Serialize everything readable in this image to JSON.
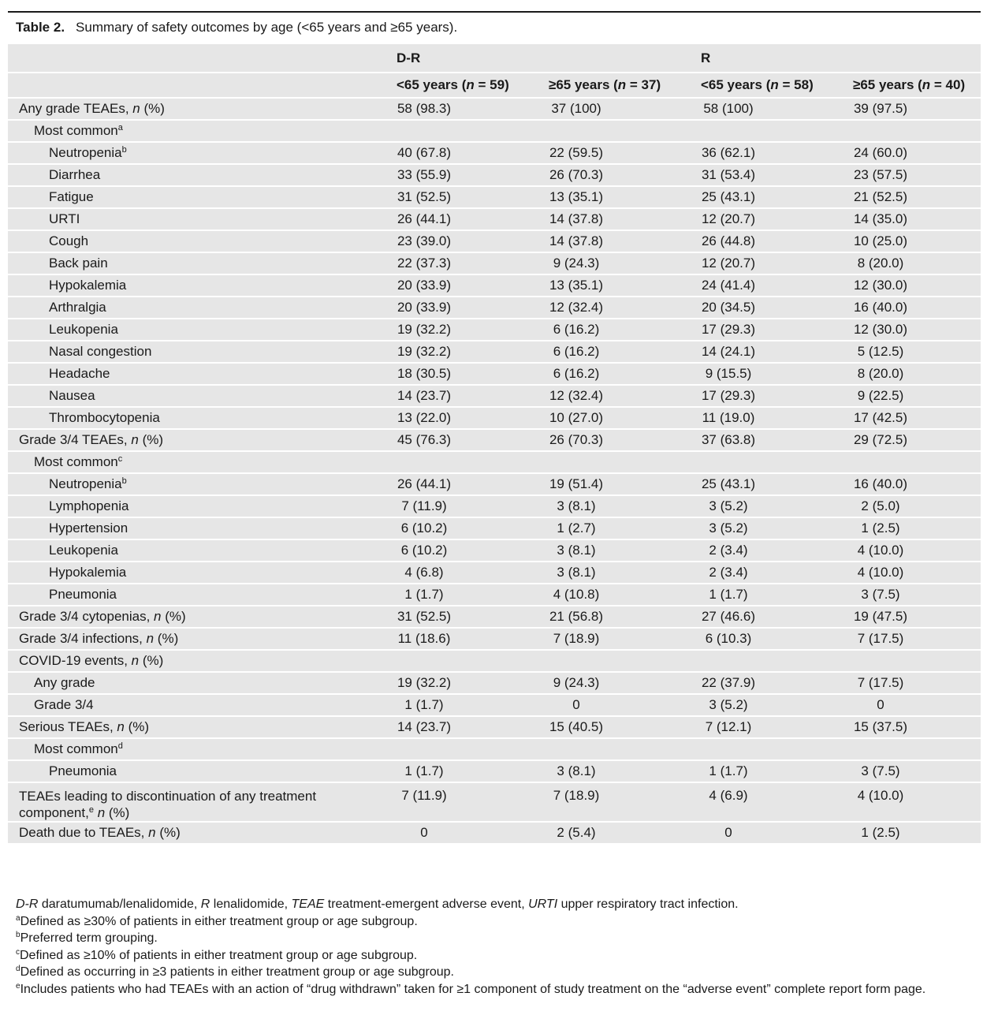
{
  "caption": {
    "label": "Table 2.",
    "text": "Summary of safety outcomes by age (<65 years and ≥65 years)."
  },
  "header": {
    "groups": [
      "D-R",
      "R"
    ],
    "subgroups": [
      {
        "prefix": "<65 years (",
        "n": "n",
        "eq": " = 59)"
      },
      {
        "prefix": "≥65 years (",
        "n": "n",
        "eq": " = 37)"
      },
      {
        "prefix": "<65 years (",
        "n": "n",
        "eq": " = 58)"
      },
      {
        "prefix": "≥65 years (",
        "n": "n",
        "eq": " = 40)"
      }
    ]
  },
  "rows": [
    {
      "label": "Any grade TEAEs, ",
      "italic": "n",
      "suffix": " (%)",
      "level": 0,
      "values": [
        "58 (98.3)",
        "37 (100)",
        "58 (100)",
        "39 (97.5)"
      ]
    },
    {
      "label": "Most common",
      "sup": "a",
      "level": 1,
      "values": [
        "",
        "",
        "",
        ""
      ]
    },
    {
      "label": "Neutropenia",
      "sup": "b",
      "level": 2,
      "values": [
        "40 (67.8)",
        "22 (59.5)",
        "36 (62.1)",
        "24 (60.0)"
      ]
    },
    {
      "label": "Diarrhea",
      "level": 2,
      "values": [
        "33 (55.9)",
        "26 (70.3)",
        "31 (53.4)",
        "23 (57.5)"
      ]
    },
    {
      "label": "Fatigue",
      "level": 2,
      "values": [
        "31 (52.5)",
        "13 (35.1)",
        "25 (43.1)",
        "21 (52.5)"
      ]
    },
    {
      "label": "URTI",
      "level": 2,
      "values": [
        "26 (44.1)",
        "14 (37.8)",
        "12 (20.7)",
        "14 (35.0)"
      ]
    },
    {
      "label": "Cough",
      "level": 2,
      "values": [
        "23 (39.0)",
        "14 (37.8)",
        "26 (44.8)",
        "10 (25.0)"
      ]
    },
    {
      "label": "Back pain",
      "level": 2,
      "values": [
        "22 (37.3)",
        "9 (24.3)",
        "12 (20.7)",
        "8 (20.0)"
      ]
    },
    {
      "label": "Hypokalemia",
      "level": 2,
      "values": [
        "20 (33.9)",
        "13 (35.1)",
        "24 (41.4)",
        "12 (30.0)"
      ]
    },
    {
      "label": "Arthralgia",
      "level": 2,
      "values": [
        "20 (33.9)",
        "12 (32.4)",
        "20 (34.5)",
        "16 (40.0)"
      ]
    },
    {
      "label": "Leukopenia",
      "level": 2,
      "values": [
        "19 (32.2)",
        "6 (16.2)",
        "17 (29.3)",
        "12 (30.0)"
      ]
    },
    {
      "label": "Nasal congestion",
      "level": 2,
      "values": [
        "19 (32.2)",
        "6 (16.2)",
        "14 (24.1)",
        "5 (12.5)"
      ]
    },
    {
      "label": "Headache",
      "level": 2,
      "values": [
        "18 (30.5)",
        "6 (16.2)",
        "9 (15.5)",
        "8 (20.0)"
      ]
    },
    {
      "label": "Nausea",
      "level": 2,
      "values": [
        "14 (23.7)",
        "12 (32.4)",
        "17 (29.3)",
        "9 (22.5)"
      ]
    },
    {
      "label": "Thrombocytopenia",
      "level": 2,
      "values": [
        "13 (22.0)",
        "10 (27.0)",
        "11 (19.0)",
        "17 (42.5)"
      ]
    },
    {
      "label": "Grade 3/4 TEAEs, ",
      "italic": "n",
      "suffix": " (%)",
      "level": 0,
      "values": [
        "45 (76.3)",
        "26 (70.3)",
        "37 (63.8)",
        "29 (72.5)"
      ]
    },
    {
      "label": "Most common",
      "sup": "c",
      "level": 1,
      "values": [
        "",
        "",
        "",
        ""
      ]
    },
    {
      "label": "Neutropenia",
      "sup": "b",
      "level": 2,
      "values": [
        "26 (44.1)",
        "19 (51.4)",
        "25 (43.1)",
        "16 (40.0)"
      ]
    },
    {
      "label": "Lymphopenia",
      "level": 2,
      "values": [
        "7 (11.9)",
        "3 (8.1)",
        "3 (5.2)",
        "2 (5.0)"
      ]
    },
    {
      "label": "Hypertension",
      "level": 2,
      "values": [
        "6 (10.2)",
        "1 (2.7)",
        "3 (5.2)",
        "1 (2.5)"
      ]
    },
    {
      "label": "Leukopenia",
      "level": 2,
      "values": [
        "6 (10.2)",
        "3 (8.1)",
        "2 (3.4)",
        "4 (10.0)"
      ]
    },
    {
      "label": "Hypokalemia",
      "level": 2,
      "values": [
        "4 (6.8)",
        "3 (8.1)",
        "2 (3.4)",
        "4 (10.0)"
      ]
    },
    {
      "label": "Pneumonia",
      "level": 2,
      "values": [
        "1 (1.7)",
        "4 (10.8)",
        "1 (1.7)",
        "3 (7.5)"
      ]
    },
    {
      "label": "Grade 3/4 cytopenias, ",
      "italic": "n",
      "suffix": " (%)",
      "level": 0,
      "values": [
        "31 (52.5)",
        "21 (56.8)",
        "27 (46.6)",
        "19 (47.5)"
      ]
    },
    {
      "label": "Grade 3/4 infections, ",
      "italic": "n",
      "suffix": " (%)",
      "level": 0,
      "values": [
        "11 (18.6)",
        "7 (18.9)",
        "6 (10.3)",
        "7 (17.5)"
      ]
    },
    {
      "label": "COVID-19 events, ",
      "italic": "n",
      "suffix": " (%)",
      "level": 0,
      "values": [
        "",
        "",
        "",
        ""
      ]
    },
    {
      "label": "Any grade",
      "level": 1,
      "values": [
        "19 (32.2)",
        "9 (24.3)",
        "22 (37.9)",
        "7 (17.5)"
      ]
    },
    {
      "label": "Grade 3/4",
      "level": 1,
      "values": [
        "1 (1.7)",
        "0",
        "3 (5.2)",
        "0"
      ]
    },
    {
      "label": "Serious TEAEs, ",
      "italic": "n",
      "suffix": " (%)",
      "level": 0,
      "values": [
        "14 (23.7)",
        "15 (40.5)",
        "7 (12.1)",
        "15 (37.5)"
      ]
    },
    {
      "label": "Most common",
      "sup": "d",
      "level": 1,
      "values": [
        "",
        "",
        "",
        ""
      ]
    },
    {
      "label": "Pneumonia",
      "level": 2,
      "values": [
        "1 (1.7)",
        "3 (8.1)",
        "1 (1.7)",
        "3 (7.5)"
      ]
    },
    {
      "label": "TEAEs leading to discontinuation of any treatment component,",
      "sup": "e",
      "italic": "n",
      "suffix": " (%)",
      "level": 0,
      "tall": true,
      "values": [
        "7 (11.9)",
        "7 (18.9)",
        "4 (6.9)",
        "4 (10.0)"
      ]
    },
    {
      "label": "Death due to TEAEs, ",
      "italic": "n",
      "suffix": " (%)",
      "level": 0,
      "values": [
        "0",
        "2 (5.4)",
        "0",
        "1 (2.5)"
      ]
    }
  ],
  "footnotes": {
    "abbrev": [
      {
        "term": "D-R",
        "def": " daratumumab/lenalidomide, "
      },
      {
        "term": "R",
        "def": " lenalidomide, "
      },
      {
        "term": "TEAE",
        "def": " treatment-emergent adverse event, "
      },
      {
        "term": "URTI",
        "def": " upper respiratory tract infection."
      }
    ],
    "notes": [
      {
        "mark": "a",
        "text": "Defined as ≥30% of patients in either treatment group or age subgroup."
      },
      {
        "mark": "b",
        "text": "Preferred term grouping."
      },
      {
        "mark": "c",
        "text": "Defined as ≥10% of patients in either treatment group or age subgroup."
      },
      {
        "mark": "d",
        "text": "Defined as occurring in ≥3 patients in either treatment group or age subgroup."
      },
      {
        "mark": "e",
        "text": "Includes patients who had TEAEs with an action of “drug withdrawn” taken for ≥1 component of study treatment on the “adverse event” complete report form page."
      }
    ]
  }
}
